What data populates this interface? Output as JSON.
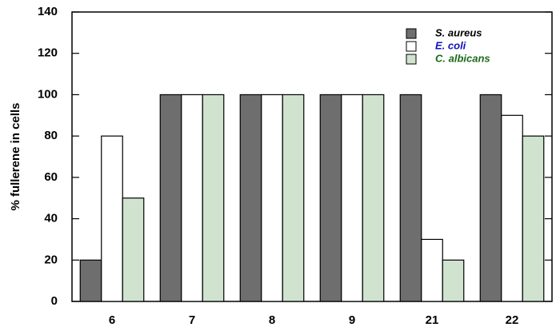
{
  "chart_data": {
    "type": "bar",
    "y_label": "% fullerene in cells",
    "categories": [
      "6",
      "7",
      "8",
      "9",
      "21",
      "22"
    ],
    "series": [
      {
        "name": "S. aureus",
        "color": "#6e6e6e",
        "label_color": "#000000",
        "values": [
          20,
          100,
          100,
          100,
          100,
          100
        ]
      },
      {
        "name": "E. coli",
        "color": "#ffffff",
        "label_color": "#1010c0",
        "values": [
          80,
          100,
          100,
          100,
          30,
          90
        ]
      },
      {
        "name": "C. albicans",
        "color": "#cfe3cf",
        "label_color": "#1a6a1a",
        "values": [
          50,
          100,
          100,
          100,
          20,
          80
        ]
      }
    ],
    "ylim": [
      0,
      140
    ],
    "yticks": [
      0,
      20,
      40,
      60,
      80,
      100,
      120,
      140
    ],
    "legend": "upper right"
  }
}
